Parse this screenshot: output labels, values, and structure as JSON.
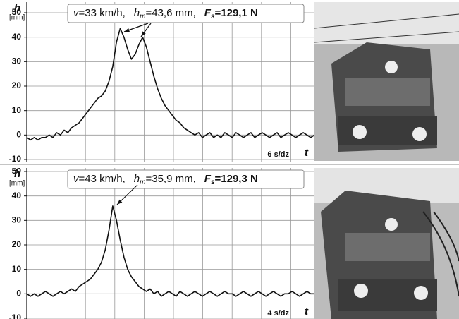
{
  "chart_data": [
    {
      "type": "line",
      "y_label": "h",
      "y_unit": "[mm]",
      "x_label": "t",
      "x_scale": "6 s/dz",
      "annotation": [
        "v",
        "=33 km/h,",
        "h",
        "m",
        "=43,6 mm,",
        "F",
        "s",
        "=129,1 N"
      ],
      "ylim": [
        -10,
        50
      ],
      "yticks": [
        -10,
        0,
        10,
        20,
        30,
        40,
        50
      ],
      "grid": true,
      "color": "#111111",
      "values": [
        -1,
        -2,
        -1,
        -2,
        -1,
        -1,
        0,
        -1,
        1,
        0,
        2,
        1,
        3,
        4,
        5,
        7,
        9,
        11,
        13,
        15,
        16,
        18,
        22,
        28,
        38,
        43.6,
        40,
        35,
        31,
        33,
        37,
        40,
        36,
        30,
        24,
        19,
        15,
        12,
        10,
        8,
        6,
        5,
        3,
        2,
        1,
        0,
        1,
        -1,
        0,
        1,
        -1,
        0,
        -1,
        1,
        0,
        -1,
        1,
        0,
        -1,
        0,
        1,
        -1,
        0,
        1,
        0,
        -1,
        0,
        1,
        -1,
        0,
        1,
        0,
        -1,
        0,
        1,
        0,
        -1,
        0
      ]
    },
    {
      "type": "line",
      "y_label": "h",
      "y_unit": "[mm]",
      "x_label": "t",
      "x_scale": "4 s/dz",
      "annotation": [
        "v",
        "=43 km/h,",
        "h",
        "m",
        "=35,9 mm,",
        "F",
        "s",
        "=129,3 N"
      ],
      "ylim": [
        -10,
        50
      ],
      "yticks": [
        -10,
        0,
        10,
        20,
        30,
        40,
        50
      ],
      "grid": true,
      "color": "#111111",
      "values": [
        0,
        -1,
        0,
        -1,
        0,
        1,
        0,
        -1,
        0,
        1,
        0,
        1,
        2,
        1,
        3,
        4,
        5,
        6,
        8,
        10,
        13,
        18,
        26,
        35.9,
        30,
        22,
        15,
        10,
        7,
        5,
        3,
        2,
        1,
        2,
        0,
        1,
        -1,
        0,
        1,
        0,
        -1,
        1,
        0,
        -1,
        0,
        1,
        0,
        -1,
        0,
        1,
        0,
        -1,
        0,
        1,
        0,
        0,
        -1,
        0,
        1,
        0,
        -1,
        0,
        1,
        0,
        -1,
        0,
        1,
        0,
        -1,
        0,
        0,
        1,
        0,
        -1,
        0,
        1,
        0,
        0
      ]
    }
  ]
}
